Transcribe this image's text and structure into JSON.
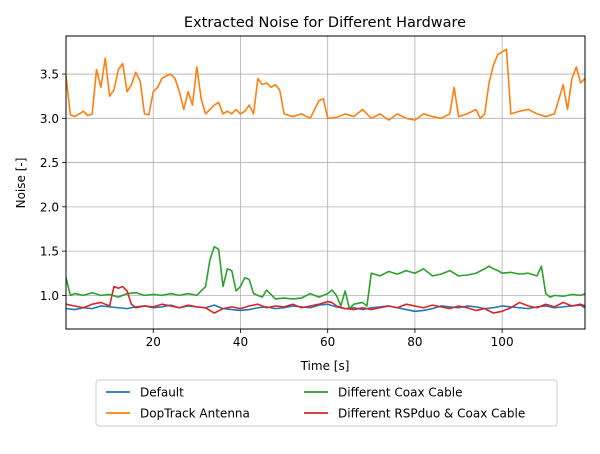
{
  "chart_data": {
    "type": "line",
    "title": "Extracted Noise for Different Hardware",
    "xlabel": "Time [s]",
    "ylabel": "Noise [-]",
    "xlim": [
      0,
      119
    ],
    "ylim": [
      0.62,
      3.93
    ],
    "grid": true,
    "legend_placement": "bottom-outside",
    "x_ticks": [
      20,
      40,
      60,
      80,
      100
    ],
    "y_ticks": [
      1.0,
      1.5,
      2.0,
      2.5,
      3.0,
      3.5
    ],
    "series": [
      {
        "name": "Default",
        "color": "#1f77b4",
        "x": [
          0,
          2,
          4,
          6,
          8,
          10,
          12,
          14,
          16,
          18,
          20,
          22,
          24,
          26,
          28,
          30,
          32,
          34,
          36,
          38,
          40,
          42,
          44,
          46,
          48,
          50,
          52,
          54,
          56,
          58,
          60,
          62,
          64,
          66,
          68,
          70,
          72,
          74,
          76,
          78,
          80,
          82,
          84,
          86,
          88,
          90,
          92,
          94,
          96,
          98,
          100,
          102,
          104,
          106,
          108,
          110,
          112,
          114,
          116,
          118,
          119
        ],
        "y": [
          0.85,
          0.84,
          0.86,
          0.85,
          0.88,
          0.87,
          0.86,
          0.85,
          0.87,
          0.88,
          0.86,
          0.87,
          0.89,
          0.86,
          0.88,
          0.87,
          0.86,
          0.89,
          0.85,
          0.84,
          0.83,
          0.84,
          0.86,
          0.87,
          0.85,
          0.86,
          0.88,
          0.87,
          0.86,
          0.89,
          0.9,
          0.87,
          0.85,
          0.86,
          0.84,
          0.86,
          0.87,
          0.88,
          0.86,
          0.84,
          0.82,
          0.83,
          0.85,
          0.88,
          0.87,
          0.86,
          0.88,
          0.87,
          0.85,
          0.86,
          0.88,
          0.87,
          0.86,
          0.85,
          0.87,
          0.88,
          0.86,
          0.87,
          0.88,
          0.89,
          0.86
        ]
      },
      {
        "name": "DopTrack Antenna",
        "color": "#ff7f0e",
        "x": [
          0,
          1,
          2,
          3,
          4,
          5,
          6,
          7,
          8,
          9,
          10,
          11,
          12,
          13,
          14,
          15,
          16,
          17,
          18,
          19,
          20,
          21,
          22,
          23,
          24,
          25,
          26,
          27,
          28,
          29,
          30,
          31,
          32,
          33,
          34,
          35,
          36,
          37,
          38,
          39,
          40,
          41,
          42,
          43,
          44,
          45,
          46,
          47,
          48,
          49,
          50,
          52,
          54,
          56,
          58,
          59,
          60,
          62,
          64,
          66,
          68,
          70,
          72,
          74,
          76,
          78,
          80,
          82,
          84,
          86,
          88,
          89,
          90,
          92,
          94,
          95,
          96,
          97,
          98,
          99,
          100,
          101,
          102,
          104,
          106,
          108,
          110,
          112,
          114,
          115,
          116,
          117,
          118,
          119
        ],
        "y": [
          3.48,
          3.04,
          3.02,
          3.05,
          3.08,
          3.03,
          3.05,
          3.55,
          3.35,
          3.68,
          3.25,
          3.32,
          3.55,
          3.62,
          3.3,
          3.38,
          3.52,
          3.42,
          3.05,
          3.04,
          3.3,
          3.35,
          3.45,
          3.48,
          3.5,
          3.45,
          3.3,
          3.1,
          3.3,
          3.15,
          3.58,
          3.22,
          3.05,
          3.1,
          3.15,
          3.18,
          3.05,
          3.08,
          3.05,
          3.1,
          3.05,
          3.08,
          3.15,
          3.05,
          3.45,
          3.38,
          3.4,
          3.35,
          3.38,
          3.32,
          3.05,
          3.02,
          3.05,
          3.0,
          3.2,
          3.22,
          3.0,
          3.01,
          3.05,
          3.02,
          3.1,
          3.0,
          3.05,
          2.98,
          3.05,
          3.0,
          2.98,
          3.05,
          3.02,
          3.0,
          3.05,
          3.35,
          3.02,
          3.05,
          3.1,
          3.0,
          3.05,
          3.4,
          3.6,
          3.72,
          3.75,
          3.78,
          3.05,
          3.08,
          3.1,
          3.05,
          3.02,
          3.05,
          3.38,
          3.1,
          3.45,
          3.58,
          3.4,
          3.45
        ]
      },
      {
        "name": "Different Coax Cable",
        "color": "#2ca02c",
        "x": [
          0,
          1,
          2,
          4,
          6,
          8,
          10,
          12,
          14,
          16,
          18,
          20,
          22,
          24,
          26,
          28,
          30,
          32,
          33,
          34,
          35,
          36,
          37,
          38,
          39,
          40,
          41,
          42,
          43,
          44,
          45,
          46,
          48,
          50,
          52,
          54,
          56,
          58,
          60,
          61,
          62,
          63,
          64,
          65,
          66,
          68,
          69,
          70,
          72,
          74,
          76,
          78,
          80,
          82,
          84,
          86,
          88,
          90,
          92,
          94,
          96,
          97,
          98,
          99,
          100,
          102,
          104,
          106,
          108,
          109,
          110,
          111,
          112,
          114,
          116,
          118,
          119
        ],
        "y": [
          1.2,
          1.0,
          1.02,
          1.0,
          1.03,
          1.0,
          1.01,
          0.98,
          1.02,
          1.03,
          1.0,
          1.01,
          1.0,
          1.02,
          1.0,
          1.02,
          1.0,
          1.1,
          1.4,
          1.55,
          1.52,
          1.1,
          1.3,
          1.28,
          1.05,
          1.1,
          1.2,
          1.18,
          1.02,
          1.0,
          0.98,
          1.06,
          0.96,
          0.97,
          0.96,
          0.97,
          1.02,
          0.98,
          1.02,
          1.06,
          1.0,
          0.88,
          1.05,
          0.85,
          0.9,
          0.92,
          0.88,
          1.25,
          1.22,
          1.27,
          1.24,
          1.28,
          1.25,
          1.3,
          1.22,
          1.24,
          1.28,
          1.22,
          1.23,
          1.25,
          1.3,
          1.33,
          1.3,
          1.28,
          1.25,
          1.26,
          1.24,
          1.25,
          1.22,
          1.33,
          1.02,
          0.98,
          1.0,
          0.99,
          1.01,
          1.0,
          1.02
        ]
      },
      {
        "name": "Different RSPduo & Coax Cable",
        "color": "#d62728",
        "x": [
          0,
          2,
          4,
          6,
          8,
          10,
          11,
          12,
          13,
          14,
          15,
          16,
          18,
          20,
          22,
          24,
          26,
          28,
          30,
          32,
          34,
          36,
          38,
          40,
          42,
          44,
          46,
          48,
          50,
          52,
          54,
          56,
          58,
          60,
          61,
          62,
          64,
          66,
          68,
          70,
          72,
          74,
          76,
          78,
          80,
          82,
          84,
          86,
          88,
          90,
          92,
          94,
          96,
          98,
          100,
          102,
          104,
          106,
          108,
          110,
          112,
          114,
          116,
          118,
          119
        ],
        "y": [
          0.9,
          0.88,
          0.86,
          0.9,
          0.92,
          0.88,
          1.1,
          1.08,
          1.1,
          1.05,
          0.9,
          0.86,
          0.88,
          0.87,
          0.9,
          0.88,
          0.86,
          0.89,
          0.87,
          0.86,
          0.8,
          0.85,
          0.87,
          0.85,
          0.88,
          0.9,
          0.86,
          0.88,
          0.87,
          0.9,
          0.86,
          0.88,
          0.9,
          0.93,
          0.92,
          0.88,
          0.85,
          0.84,
          0.86,
          0.84,
          0.86,
          0.88,
          0.86,
          0.9,
          0.88,
          0.86,
          0.89,
          0.87,
          0.85,
          0.88,
          0.86,
          0.83,
          0.85,
          0.8,
          0.82,
          0.86,
          0.92,
          0.88,
          0.86,
          0.9,
          0.87,
          0.92,
          0.88,
          0.9,
          0.88
        ]
      }
    ]
  }
}
